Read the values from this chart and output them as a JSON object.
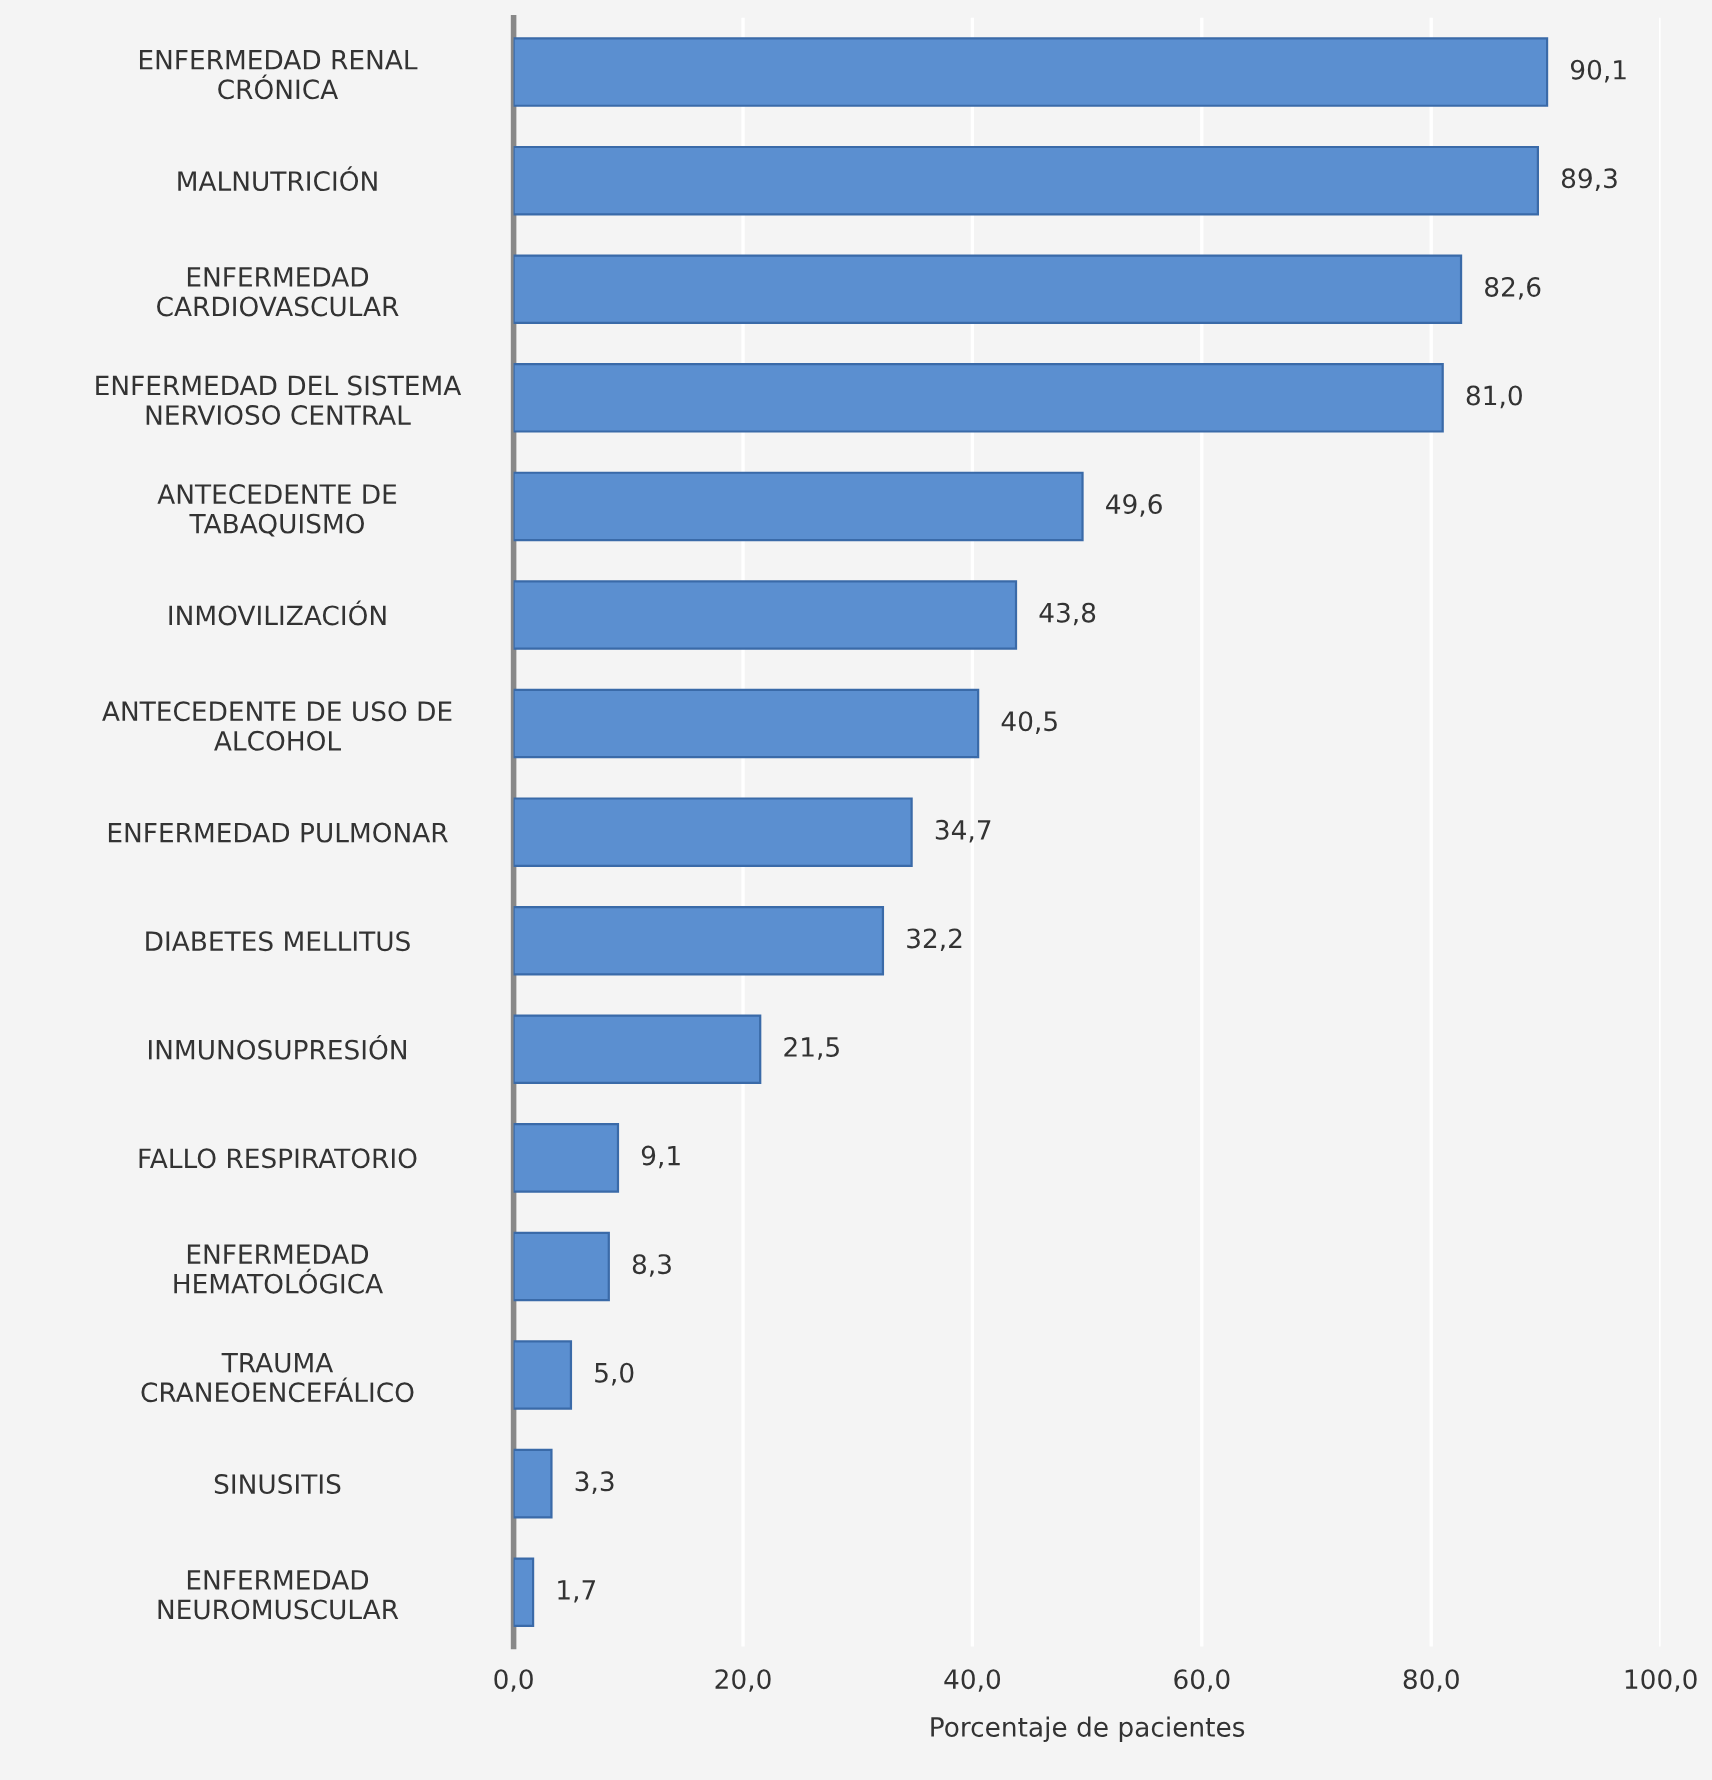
{
  "chart_data": {
    "type": "bar",
    "orientation": "horizontal",
    "xlabel": "Porcentaje de pacientes",
    "categories": [
      "ENFERMEDAD RENAL\nCRÓNICA",
      "MALNUTRICIÓN",
      "ENFERMEDAD\nCARDIOVASCULAR",
      "ENFERMEDAD DEL SISTEMA\nNERVIOSO CENTRAL",
      "ANTECEDENTE DE\nTABAQUISMO",
      "INMOVILIZACIÓN",
      "ANTECEDENTE DE USO DE\nALCOHOL",
      "ENFERMEDAD PULMONAR",
      "DIABETES MELLITUS",
      "INMUNOSUPRESIÓN",
      "FALLO RESPIRATORIO",
      "ENFERMEDAD\nHEMATOLÓGICA",
      "TRAUMA\nCRANEOENCEFÁLICO",
      "SINUSITIS",
      "ENFERMEDAD\nNEUROMUSCULAR"
    ],
    "values": [
      90.1,
      89.3,
      82.6,
      81.0,
      49.6,
      43.8,
      40.5,
      34.7,
      32.2,
      21.5,
      9.1,
      8.3,
      5.0,
      3.3,
      1.7
    ],
    "value_labels": [
      "90,1",
      "89,3",
      "82,6",
      "81,0",
      "49,6",
      "43,8",
      "40,5",
      "34,7",
      "32,2",
      "21,5",
      "9,1",
      "8,3",
      "5,0",
      "3,3",
      "1,7"
    ],
    "color": "#5b8fd0",
    "xlim": [
      0,
      100
    ],
    "xticks": [
      {
        "value": 0,
        "label": "0,0"
      },
      {
        "value": 20,
        "label": "20,0"
      },
      {
        "value": 40,
        "label": "40,0"
      },
      {
        "value": 60,
        "label": "60,0"
      },
      {
        "value": 80,
        "label": "80,0"
      },
      {
        "value": 100,
        "label": "100,0"
      }
    ],
    "grid": "x"
  }
}
